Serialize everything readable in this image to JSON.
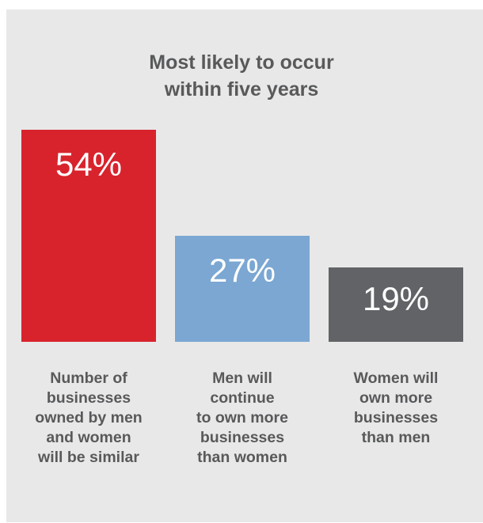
{
  "chart_data": {
    "type": "bar",
    "title_lines": [
      "Most likely to occur",
      "within five years"
    ],
    "categories": [
      "Number of\nbusinesses\nowned by men\nand women\nwill be similar",
      "Men will\ncontinue\nto own more\nbusinesses\nthan women",
      "Women will\nown more\nbusinesses\nthan men"
    ],
    "values": [
      54,
      27,
      19
    ],
    "value_labels": [
      "54%",
      "27%",
      "19%"
    ],
    "colors": [
      "#d8232d",
      "#7ba7d2",
      "#626366"
    ],
    "ylim": [
      0,
      54
    ],
    "grid": false,
    "legend": "none"
  }
}
